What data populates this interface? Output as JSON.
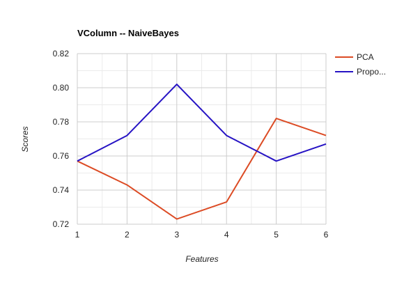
{
  "chart_data": {
    "type": "line",
    "title": "VColumn -- NaiveBayes",
    "xlabel": "Features",
    "ylabel": "Scores",
    "x": [
      1,
      2,
      3,
      4,
      5,
      6
    ],
    "x_tick_labels": [
      "1",
      "2",
      "3",
      "4",
      "5",
      "6"
    ],
    "y_tick_labels": [
      "0.72",
      "0.74",
      "0.76",
      "0.78",
      "0.80",
      "0.82"
    ],
    "y_ticks": [
      0.72,
      0.74,
      0.76,
      0.78,
      0.8,
      0.82
    ],
    "xlim": [
      1,
      6
    ],
    "ylim": [
      0.72,
      0.82
    ],
    "grid": true,
    "legend_position": "right",
    "series": [
      {
        "name": "PCA",
        "color": "#dc4b24",
        "values": [
          0.757,
          0.743,
          0.723,
          0.733,
          0.782,
          0.772
        ]
      },
      {
        "name": "Propo...",
        "color": "#2613c4",
        "values": [
          0.757,
          0.772,
          0.802,
          0.772,
          0.757,
          0.767
        ]
      }
    ]
  }
}
